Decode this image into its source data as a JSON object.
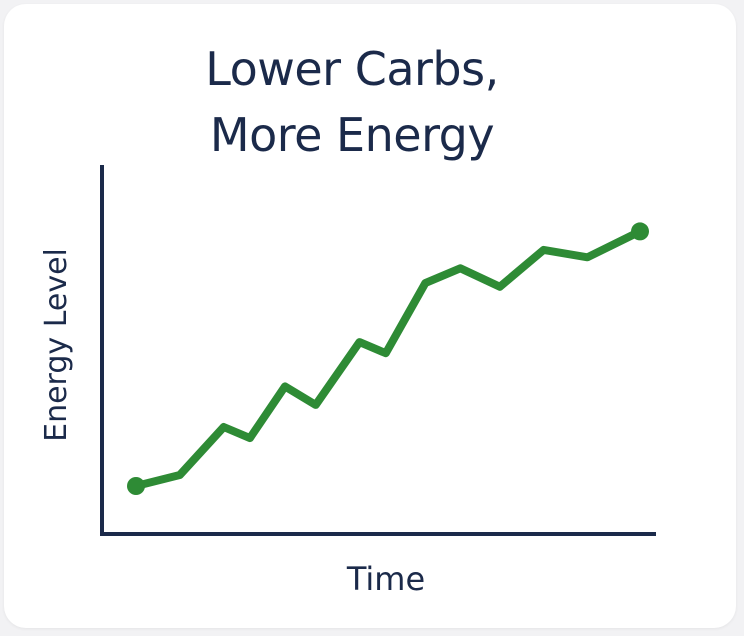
{
  "chart_data": {
    "type": "line",
    "title_lines": [
      "Lower Carbs,",
      "More Energy"
    ],
    "xlabel": "Time",
    "ylabel": "Energy Level",
    "grid": false,
    "legend": "none",
    "xlim": [
      0,
      13
    ],
    "ylim": [
      0,
      10
    ],
    "series": [
      {
        "color": "#2e8b35",
        "x": [
          0,
          1,
          2,
          2.6,
          3.4,
          4.1,
          5.1,
          5.7,
          6.6,
          7.4,
          8.3,
          9.3,
          10.3,
          11.5
        ],
        "y": [
          1.3,
          1.6,
          2.9,
          2.6,
          4.0,
          3.5,
          5.2,
          4.9,
          6.8,
          7.2,
          6.7,
          7.7,
          7.5,
          8.2
        ]
      }
    ],
    "markers": "endpoints"
  }
}
